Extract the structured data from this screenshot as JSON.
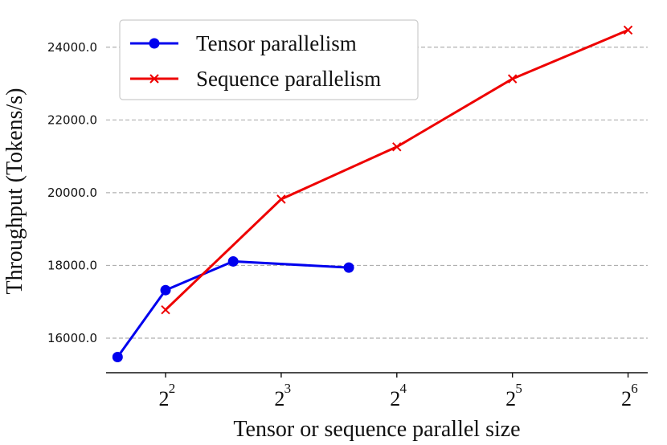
{
  "chart_data": {
    "type": "line",
    "xlabel": "Tensor or sequence parallel size",
    "ylabel": "Throughput (Tokens/s)",
    "xscale": "log2",
    "xlim": [
      2.8,
      72
    ],
    "ylim": [
      15050,
      24900
    ],
    "grid": "y-dashed",
    "legend_position": "top-left",
    "x_ticks": [
      {
        "value": 4,
        "base": "2",
        "exp": "2"
      },
      {
        "value": 8,
        "base": "2",
        "exp": "3"
      },
      {
        "value": 16,
        "base": "2",
        "exp": "4"
      },
      {
        "value": 32,
        "base": "2",
        "exp": "5"
      },
      {
        "value": 64,
        "base": "2",
        "exp": "6"
      }
    ],
    "y_ticks": [
      {
        "value": 16000,
        "label": "16000.0"
      },
      {
        "value": 18000,
        "label": "18000.0"
      },
      {
        "value": 20000,
        "label": "20000.0"
      },
      {
        "value": 22000,
        "label": "22000.0"
      },
      {
        "value": 24000,
        "label": "24000.0"
      }
    ],
    "series": [
      {
        "name": "Tensor parallelism",
        "color": "#0000ee",
        "marker": "circle",
        "points": [
          {
            "x": 3,
            "y": 15480
          },
          {
            "x": 4,
            "y": 17320
          },
          {
            "x": 6,
            "y": 18110
          },
          {
            "x": 12,
            "y": 17940
          }
        ]
      },
      {
        "name": "Sequence parallelism",
        "color": "#ee0000",
        "marker": "x",
        "points": [
          {
            "x": 4,
            "y": 16780
          },
          {
            "x": 8,
            "y": 19820
          },
          {
            "x": 16,
            "y": 21260
          },
          {
            "x": 32,
            "y": 23130
          },
          {
            "x": 64,
            "y": 24470
          }
        ]
      }
    ]
  }
}
